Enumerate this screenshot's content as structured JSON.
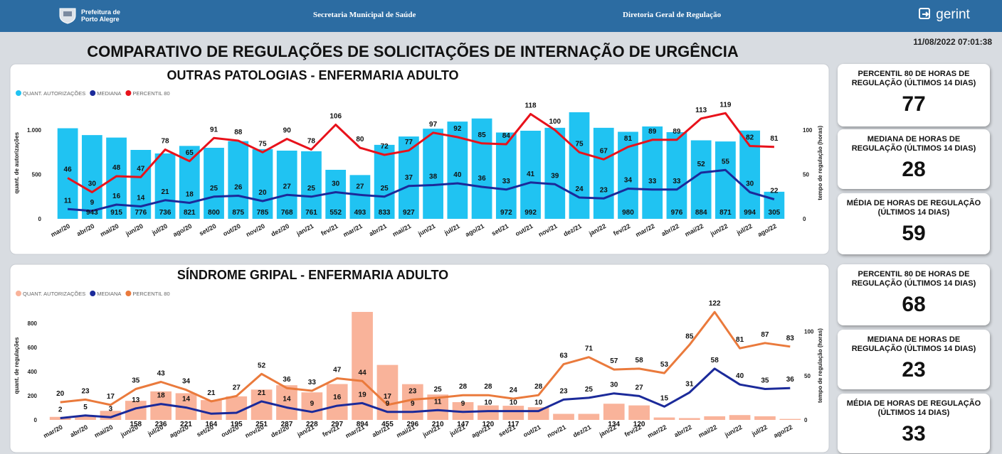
{
  "header": {
    "logo_line1": "Prefeitura de",
    "logo_line2": "Porto Alegre",
    "secretaria": "Secretaria Municipal de Saúde",
    "diretoria": "Diretoria Geral de Regulação",
    "brand": "gerint"
  },
  "timestamp": "11/08/2022 07:01:38",
  "title": "COMPARATIVO DE REGULAÇÕES DE SOLICITAÇÕES DE INTERNAÇÃO DE URGÊNCIA",
  "chart_data": [
    {
      "type": "bar_line",
      "title": "OUTRAS PATOLOGIAS - ENFERMARIA ADULTO",
      "y_label": "quant. de autorizações",
      "y2_label": "tempo de regulação (horas)",
      "legend": "top-left",
      "categories": [
        "mar/20",
        "abr/20",
        "mai/20",
        "jun/20",
        "jul/20",
        "ago/20",
        "set/20",
        "out/20",
        "nov/20",
        "dez/20",
        "jan/21",
        "fev/21",
        "mar/21",
        "abr/21",
        "mai/21",
        "jun/21",
        "jul/21",
        "ago/21",
        "set/21",
        "out/21",
        "nov/21",
        "dez/21",
        "jan/22",
        "fev/22",
        "mar/22",
        "abr/22",
        "mai/22",
        "jun/22",
        "jul/22",
        "ago/22"
      ],
      "series": [
        {
          "name": "QUANT. AUTORIZAÇÕES",
          "type": "bar",
          "color": "#20c3f2",
          "values": [
            1020,
            943,
            915,
            776,
            736,
            821,
            800,
            875,
            785,
            768,
            761,
            552,
            493,
            833,
            927,
            1015,
            1095,
            1130,
            972,
            992,
            1025,
            1200,
            1025,
            980,
            1040,
            976,
            884,
            871,
            994,
            305
          ],
          "value_labels": [
            null,
            "943",
            "915",
            "776",
            "736",
            "821",
            "800",
            "875",
            "785",
            "768",
            "761",
            "552",
            "493",
            "833",
            "927",
            null,
            null,
            null,
            "972",
            "992",
            null,
            null,
            null,
            "980",
            null,
            "976",
            "884",
            "871",
            "994",
            "305"
          ]
        },
        {
          "name": "MEDIANA",
          "type": "line",
          "axis": "y2",
          "color": "#1b2a9a",
          "values": [
            11,
            9,
            16,
            14,
            21,
            18,
            25,
            26,
            20,
            27,
            25,
            30,
            27,
            25,
            37,
            38,
            40,
            36,
            33,
            41,
            39,
            24,
            23,
            34,
            33,
            33,
            52,
            55,
            30,
            22
          ]
        },
        {
          "name": "PERCENTIL 80",
          "type": "line",
          "axis": "y2",
          "color": "#e8121b",
          "values": [
            46,
            30,
            48,
            47,
            78,
            65,
            91,
            88,
            75,
            90,
            78,
            106,
            80,
            72,
            77,
            97,
            92,
            85,
            84,
            118,
            100,
            75,
            67,
            81,
            89,
            89,
            113,
            119,
            82,
            81
          ]
        }
      ],
      "ylim": [
        0,
        1260
      ],
      "yticks": [
        0,
        500,
        {
          "value": 1000,
          "label": "1.000"
        }
      ],
      "y2lim": [
        0,
        126
      ],
      "y2ticks": [
        0,
        50,
        100
      ]
    },
    {
      "type": "bar_line",
      "title": "SÍNDROME GRIPAL - ENFERMARIA ADULTO",
      "y_label": "quant. de regulações",
      "y2_label": "tempo de regulação (horas)",
      "legend": "top-left",
      "categories": [
        "mar/20",
        "abr/20",
        "mai/20",
        "jun/20",
        "jul/20",
        "ago/20",
        "set/20",
        "out/20",
        "nov/20",
        "dez/20",
        "jan/21",
        "fev/21",
        "mar/21",
        "abr/21",
        "mai/21",
        "jun/21",
        "jul/21",
        "ago/21",
        "set/21",
        "out/21",
        "nov/21",
        "dez/21",
        "jan/22",
        "fev/22",
        "mar/22",
        "abr/22",
        "mai/22",
        "jun/22",
        "jul/22",
        "ago/22"
      ],
      "series": [
        {
          "name": "QUANT. AUTORIZAÇÕES",
          "type": "bar",
          "color": "#f9b39a",
          "values": [
            25,
            35,
            75,
            158,
            236,
            221,
            164,
            195,
            251,
            287,
            228,
            297,
            894,
            455,
            296,
            210,
            147,
            120,
            117,
            105,
            50,
            50,
            134,
            120,
            20,
            15,
            30,
            40,
            30,
            8
          ],
          "value_labels": [
            null,
            null,
            null,
            "158",
            "236",
            "221",
            "164",
            "195",
            "251",
            "287",
            "228",
            "297",
            "894",
            "455",
            "296",
            "210",
            "147",
            "120",
            "117",
            null,
            null,
            null,
            "134",
            "120",
            null,
            null,
            null,
            null,
            null,
            null
          ]
        },
        {
          "name": "MEDIANA",
          "type": "line",
          "axis": "y2",
          "color": "#1b2a9a",
          "values": [
            2,
            5,
            3,
            13,
            18,
            14,
            7,
            8,
            21,
            14,
            9,
            16,
            19,
            9,
            9,
            11,
            9,
            10,
            10,
            10,
            23,
            25,
            30,
            27,
            15,
            31,
            58,
            40,
            35,
            36
          ],
          "value_labels": [
            "2",
            "5",
            "3",
            "13",
            "18",
            "14",
            null,
            null,
            "21",
            "14",
            "9",
            "16",
            "19",
            "9",
            "9",
            "11",
            "9",
            "10",
            "10",
            "10",
            "23",
            "25",
            "30",
            "27",
            "15",
            "31",
            "58",
            "40",
            "35",
            "36"
          ]
        },
        {
          "name": "PERCENTIL 80",
          "type": "line",
          "axis": "y2",
          "color": "#ea7a3c",
          "values": [
            20,
            23,
            17,
            35,
            43,
            34,
            21,
            27,
            52,
            36,
            33,
            47,
            44,
            17,
            23,
            25,
            28,
            28,
            24,
            28,
            63,
            71,
            57,
            58,
            53,
            85,
            122,
            81,
            87,
            83
          ]
        }
      ],
      "ylim": [
        0,
        900
      ],
      "yticks": [
        0,
        200,
        400,
        600,
        800
      ],
      "y2lim": [
        0,
        123
      ],
      "y2ticks": [
        0,
        50,
        100
      ]
    }
  ],
  "kpis": [
    {
      "label": "PERCENTIL 80 DE HORAS DE REGULAÇÃO (ÚLTIMOS 14 DIAS)",
      "value": 77
    },
    {
      "label": "MEDIANA DE HORAS DE REGULAÇÃO (ÚLTIMOS 14 DIAS)",
      "value": 28
    },
    {
      "label": "MÉDIA DE HORAS DE REGULAÇÃO (ÚLTIMOS 14 DIAS)",
      "value": 59
    },
    {
      "label": "PERCENTIL 80 DE HORAS DE REGULAÇÃO (ÚLTIMOS 14 DIAS)",
      "value": 68
    },
    {
      "label": "MEDIANA DE HORAS DE REGULAÇÃO (ÚLTIMOS 14 DIAS)",
      "value": 23
    },
    {
      "label": "MÉDIA DE HORAS DE REGULAÇÃO (ÚLTIMOS 14 DIAS)",
      "value": 33
    }
  ]
}
